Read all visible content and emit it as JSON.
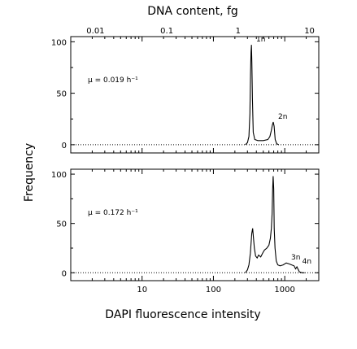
{
  "top_axis": {
    "label": "DNA content, fg",
    "ticks": [
      0.01,
      0.1,
      1,
      10
    ],
    "tick_labels": [
      "0.01",
      "0.1",
      "1",
      "10"
    ]
  },
  "bottom_axis": {
    "label": "DAPI fluorescence intensity",
    "ticks": [
      10,
      100,
      1000
    ],
    "tick_labels": [
      "10",
      "100",
      "1000"
    ]
  },
  "y_axis": {
    "label": "Frequency",
    "ticks": [
      0,
      50,
      100
    ],
    "tick_labels": [
      "0",
      "50",
      "100"
    ]
  },
  "chart_data": [
    {
      "type": "line",
      "panel": "top",
      "xlabel": "DAPI fluorescence intensity",
      "ylabel": "Frequency",
      "secondary_xlabel": "DNA content, fg",
      "xscale": "log",
      "xlim": [
        1,
        3000
      ],
      "secondary_xlim": [
        0.0045,
        13.5
      ],
      "ylim": [
        -8,
        105
      ],
      "growth_rate_label": "μ = 0.019 h⁻¹",
      "baseline": "dotted line at 0",
      "peaks": [
        {
          "label": "1n",
          "x": 340,
          "y": 97
        },
        {
          "label": "2n",
          "x": 690,
          "y": 22
        }
      ],
      "series": [
        {
          "x": [
            280,
            300,
            315,
            325,
            332,
            337,
            341,
            346,
            352,
            362,
            380,
            420,
            500,
            580,
            620,
            650,
            670,
            690,
            710,
            735,
            770,
            820
          ],
          "y": [
            0,
            2,
            8,
            30,
            70,
            90,
            97,
            80,
            45,
            12,
            5,
            4,
            4,
            5,
            8,
            14,
            19,
            22,
            18,
            5,
            1,
            0
          ]
        }
      ]
    },
    {
      "type": "line",
      "panel": "bottom",
      "xlabel": "DAPI fluorescence intensity",
      "ylabel": "Frequency",
      "xscale": "log",
      "xlim": [
        1,
        3000
      ],
      "ylim": [
        -8,
        105
      ],
      "growth_rate_label": "μ = 0.172 h⁻¹",
      "baseline": "dotted line at 0",
      "peaks": [
        {
          "label": "3n",
          "x": 1050,
          "y": 10
        },
        {
          "label": "4n",
          "x": 1500,
          "y": 6
        }
      ],
      "series": [
        {
          "x": [
            280,
            300,
            315,
            330,
            345,
            355,
            362,
            375,
            390,
            410,
            430,
            460,
            490,
            520,
            560,
            600,
            630,
            650,
            665,
            678,
            688,
            700,
            712,
            730,
            760,
            800,
            860,
            950,
            1050,
            1150,
            1250,
            1350,
            1420,
            1480,
            1530,
            1600,
            1750,
            1900
          ],
          "y": [
            0,
            3,
            8,
            20,
            40,
            45,
            38,
            25,
            17,
            15,
            18,
            16,
            20,
            23,
            25,
            28,
            35,
            45,
            60,
            85,
            98,
            85,
            45,
            25,
            12,
            8,
            7,
            8,
            10,
            9,
            8,
            7,
            4,
            6,
            4,
            1,
            0,
            0
          ]
        }
      ]
    }
  ]
}
